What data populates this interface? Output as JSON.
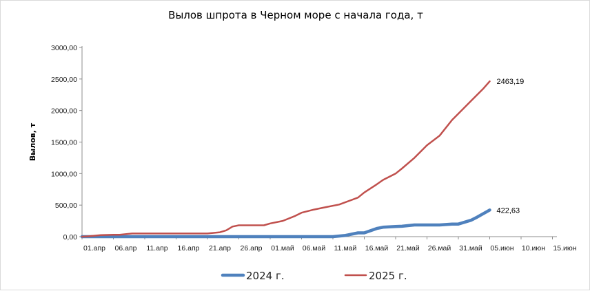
{
  "chart_data": {
    "type": "line",
    "title": "Вылов шпрота в Черном море с начала года, т",
    "ylabel": "Вылов, т",
    "xlabel": "",
    "ylim": [
      0,
      3000
    ],
    "y_ticks": [
      "0,00",
      "500,00",
      "1000,00",
      "1500,00",
      "2000,00",
      "2500,00",
      "3000,00"
    ],
    "x_ticks": [
      "01.апр",
      "06.апр",
      "11.апр",
      "16.апр",
      "21.апр",
      "26.апр",
      "01.май",
      "06.май",
      "11.май",
      "16.май",
      "21.май",
      "26.май",
      "31.май",
      "05.июн",
      "10.июн",
      "15.июн"
    ],
    "grid": false,
    "legend_position": "bottom",
    "series": [
      {
        "name": "2024 г.",
        "color": "#4f81bd",
        "end_label": "422,63",
        "x": [
          "01.апр",
          "06.апр",
          "11.апр",
          "16.апр",
          "21.апр",
          "26.апр",
          "01.май",
          "06.май",
          "11.май",
          "13.май",
          "15.май",
          "16.май",
          "18.май",
          "19.май",
          "21.май",
          "22.май",
          "24.май",
          "26.май",
          "28.май",
          "30.май",
          "31.май",
          "02.июн",
          "03.июн",
          "05.июн"
        ],
        "values": [
          0,
          0,
          0,
          0,
          0,
          0,
          0,
          0,
          0,
          20,
          60,
          60,
          130,
          150,
          160,
          165,
          185,
          185,
          185,
          200,
          200,
          260,
          310,
          422.63
        ]
      },
      {
        "name": "2025 г.",
        "color": "#c0504d",
        "end_label": "2463,19",
        "x": [
          "01.апр",
          "02.апр",
          "04.апр",
          "06.апр",
          "07.апр",
          "09.апр",
          "11.апр",
          "16.апр",
          "21.апр",
          "23.апр",
          "24.апр",
          "25.апр",
          "26.апр",
          "28.апр",
          "30.апр",
          "01.май",
          "03.май",
          "05.май",
          "06.май",
          "08.май",
          "10.май",
          "12.май",
          "15.май",
          "16.май",
          "18.май",
          "19.май",
          "21.май",
          "22.май",
          "24.май",
          "26.май",
          "28.май",
          "30.май",
          "31.май",
          "02.июн",
          "04.июн",
          "05.июн"
        ],
        "values": [
          0,
          5,
          25,
          30,
          30,
          50,
          50,
          50,
          50,
          70,
          100,
          160,
          180,
          180,
          180,
          210,
          250,
          330,
          380,
          430,
          470,
          510,
          620,
          700,
          830,
          900,
          1000,
          1080,
          1250,
          1450,
          1600,
          1850,
          1950,
          2150,
          2350,
          2463.19
        ]
      }
    ]
  }
}
